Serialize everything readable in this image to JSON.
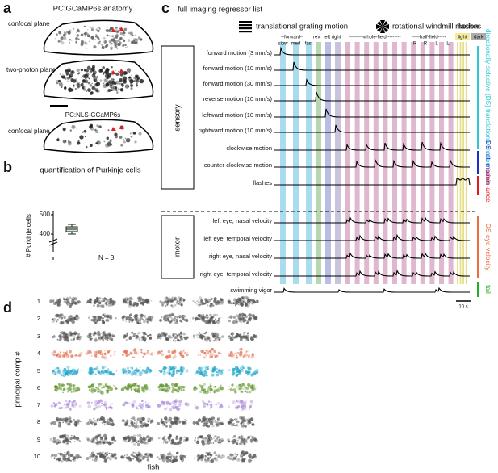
{
  "panel_a": {
    "label": "a",
    "title": "PC:GCaMP6s anatomy",
    "plane1": "confocal plane",
    "plane2": "two-photon plane",
    "subtitle": "PC:NLS-GCaMP6s",
    "plane3": "confocal plane"
  },
  "panel_b": {
    "label": "b",
    "title": "quantification of Purkinje cells",
    "ylabel": "# Purkinje cells",
    "tick_high": "500",
    "tick_low": "400",
    "n": "N = 3"
  },
  "panel_c": {
    "label": "c",
    "title": "full imaging regressor list",
    "header_translational": "translational grating motion",
    "header_rotational": "rotational windmill motion",
    "header_flashes": "flashes",
    "sub_forward": "--forward--",
    "sub_rev": "rev",
    "sub_leftright": "left right",
    "sub_whole": "---------whole-field---------",
    "sub_half": "-----half-field-----",
    "sub_light": "light",
    "sub_dark": "dark",
    "speeds": [
      "slow",
      "med",
      "fast"
    ],
    "half_dirs": [
      "R",
      "R",
      "L",
      "L"
    ],
    "group_sensory": "sensory",
    "group_motor": "motor",
    "sensory_rows": [
      "forward motion (3 mm/s)",
      "forward motion (10 mm/s)",
      "forward motion (30 mm/s)",
      "reverse motion (10 mm/s)",
      "leftward motion (10 mm/s)",
      "rightward motion (10 mm/s)",
      "clockwise motion",
      "counter-clockwise motion",
      "flashes"
    ],
    "motor_rows": [
      "left eye, nasal velocity",
      "left eye, temporal velocity",
      "right eye, nasal velocity",
      "right eye, temporal velocity",
      "swimming vigor"
    ],
    "side_labels": [
      "directionally-selective (DS) translational motion",
      "DS rot. motion",
      "lumin-ance",
      "DS eye velocity",
      "tail"
    ],
    "scale": "10 s"
  },
  "panel_d": {
    "label": "d",
    "ylabel": "principal comp #",
    "rows": [
      "1",
      "2",
      "3",
      "4",
      "5",
      "6",
      "7",
      "8",
      "9",
      "10"
    ],
    "xlabel": "fish"
  }
}
